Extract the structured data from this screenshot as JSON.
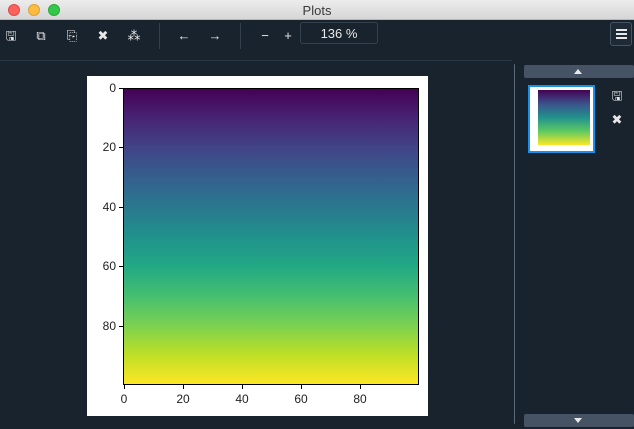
{
  "window": {
    "title": "Plots"
  },
  "toolbar": {
    "buttons": [
      {
        "name": "save-plot-icon",
        "glyph": "🖫"
      },
      {
        "name": "save-all-icon",
        "glyph": "⧉"
      },
      {
        "name": "copy-icon",
        "glyph": "⎘"
      },
      {
        "name": "close-plot-icon",
        "glyph": "✖"
      },
      {
        "name": "close-all-icon",
        "glyph": "⁂"
      },
      {
        "name": "previous-plot-icon",
        "glyph": "←"
      },
      {
        "name": "next-plot-icon",
        "glyph": "→"
      },
      {
        "name": "zoom-out-icon",
        "glyph": "−"
      },
      {
        "name": "zoom-in-icon",
        "glyph": "+"
      }
    ],
    "zoom": "136 %"
  },
  "plot": {
    "y_ticks": [
      "0",
      "20",
      "40",
      "60",
      "80"
    ],
    "x_ticks": [
      "0",
      "20",
      "40",
      "60",
      "80"
    ],
    "colormap": "viridis"
  },
  "sidebar": {
    "save_icon": "🖫",
    "close_icon": "✖"
  }
}
